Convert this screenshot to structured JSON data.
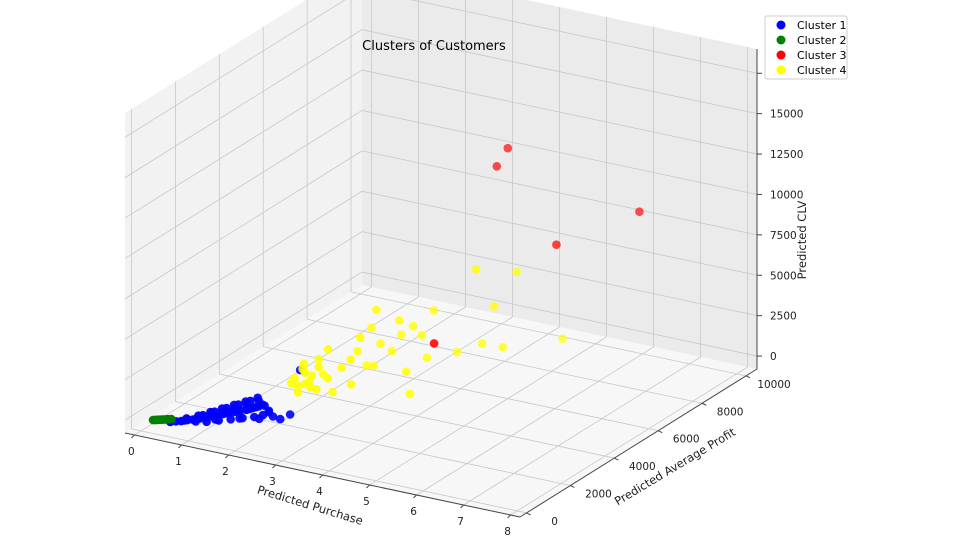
{
  "chart_data": {
    "type": "scatter",
    "projection": "3d",
    "title": "Clusters of Customers",
    "xlabel": "Predicted Purchase",
    "ylabel": "Predicted Average Profit",
    "zlabel": "Predicted CLV",
    "xlim": [
      -0.2,
      8.2
    ],
    "ylim": [
      -300,
      10500
    ],
    "zlim": [
      -800,
      19000
    ],
    "xticks": [
      "0",
      "1",
      "2",
      "3",
      "4",
      "5",
      "6",
      "7",
      "8"
    ],
    "yticks": [
      "0",
      "2000",
      "4000",
      "6000",
      "8000",
      "10000"
    ],
    "zticks": [
      "0",
      "2500",
      "5000",
      "7500",
      "10000",
      "12500",
      "15000",
      "17500"
    ],
    "grid": true,
    "legend_position": "top-right",
    "colors": {
      "pane_left": "#f2f2f2",
      "pane_back": "#ebebeb",
      "pane_floor": "#f7f7f7",
      "grid": "#c8c8c8"
    },
    "series": [
      {
        "name": "Cluster 1",
        "color": "#0000ff",
        "points": [
          [
            0.6,
            50,
            80
          ],
          [
            0.7,
            90,
            150
          ],
          [
            0.8,
            120,
            200
          ],
          [
            0.85,
            160,
            230
          ],
          [
            0.9,
            180,
            270
          ],
          [
            1.0,
            220,
            330
          ],
          [
            1.05,
            260,
            380
          ],
          [
            1.1,
            290,
            420
          ],
          [
            1.2,
            330,
            480
          ],
          [
            1.25,
            370,
            540
          ],
          [
            1.3,
            400,
            580
          ],
          [
            1.4,
            440,
            640
          ],
          [
            1.45,
            470,
            690
          ],
          [
            1.5,
            510,
            740
          ],
          [
            1.55,
            540,
            790
          ],
          [
            1.6,
            580,
            840
          ],
          [
            1.7,
            620,
            900
          ],
          [
            1.75,
            650,
            950
          ],
          [
            1.8,
            690,
            1000
          ],
          [
            1.9,
            730,
            1060
          ],
          [
            1.95,
            760,
            1110
          ],
          [
            2.0,
            800,
            1170
          ],
          [
            2.05,
            840,
            1220
          ],
          [
            2.1,
            870,
            1270
          ],
          [
            2.2,
            920,
            1340
          ],
          [
            0.9,
            150,
            400
          ],
          [
            1.1,
            260,
            600
          ],
          [
            1.3,
            380,
            850
          ],
          [
            1.5,
            480,
            1100
          ],
          [
            1.7,
            600,
            1350
          ],
          [
            1.9,
            700,
            1600
          ],
          [
            2.1,
            820,
            1850
          ],
          [
            1.2,
            420,
            150
          ],
          [
            1.4,
            540,
            250
          ],
          [
            1.6,
            660,
            350
          ],
          [
            1.8,
            770,
            450
          ],
          [
            2.0,
            880,
            550
          ],
          [
            2.15,
            950,
            700
          ],
          [
            2.25,
            1000,
            900
          ],
          [
            1.0,
            350,
            100
          ],
          [
            1.2,
            250,
            700
          ],
          [
            1.4,
            360,
            950
          ],
          [
            1.6,
            470,
            1200
          ],
          [
            1.8,
            580,
            1450
          ],
          [
            2.0,
            700,
            1700
          ],
          [
            2.2,
            820,
            1500
          ],
          [
            2.3,
            900,
            1100
          ],
          [
            2.4,
            1200,
            400
          ],
          [
            1.3,
            600,
            200
          ],
          [
            1.7,
            850,
            300
          ],
          [
            2.0,
            1100,
            250
          ],
          [
            2.2,
            1300,
            350
          ],
          [
            1.15,
            200,
            500
          ],
          [
            1.35,
            300,
            750
          ],
          [
            1.55,
            420,
            1000
          ],
          [
            1.75,
            520,
            1250
          ],
          [
            1.95,
            640,
            1500
          ],
          [
            2.15,
            760,
            1750
          ],
          [
            2.4,
            1650,
            300
          ],
          [
            2.5,
            1900,
            2900
          ]
        ]
      },
      {
        "name": "Cluster 2",
        "color": "#008000",
        "points": [
          [
            0.25,
            10,
            20
          ],
          [
            0.27,
            15,
            30
          ],
          [
            0.29,
            22,
            40
          ],
          [
            0.31,
            28,
            50
          ],
          [
            0.33,
            35,
            60
          ],
          [
            0.35,
            40,
            70
          ],
          [
            0.37,
            48,
            80
          ],
          [
            0.39,
            55,
            90
          ],
          [
            0.41,
            60,
            100
          ],
          [
            0.43,
            68,
            110
          ],
          [
            0.45,
            75,
            120
          ],
          [
            0.47,
            80,
            130
          ],
          [
            0.49,
            88,
            140
          ],
          [
            0.51,
            95,
            150
          ],
          [
            0.53,
            100,
            160
          ],
          [
            0.55,
            108,
            170
          ],
          [
            0.57,
            115,
            180
          ],
          [
            0.59,
            120,
            190
          ]
        ]
      },
      {
        "name": "Cluster 3",
        "color": "#ff0000",
        "points": [
          [
            5.0,
            5500,
            14000
          ],
          [
            5.0,
            6000,
            14700
          ],
          [
            6.5,
            5000,
            10500
          ],
          [
            7.8,
            6000,
            12500
          ],
          [
            5.3,
            2000,
            6200
          ]
        ]
      },
      {
        "name": "Cluster 4",
        "color": "#ffff00",
        "points": [
          [
            2.5,
            1800,
            1600
          ],
          [
            2.6,
            1900,
            2100
          ],
          [
            2.7,
            2000,
            2600
          ],
          [
            2.8,
            2100,
            3100
          ],
          [
            2.55,
            1900,
            3000
          ],
          [
            2.65,
            2000,
            2200
          ],
          [
            2.75,
            2100,
            1700
          ],
          [
            2.45,
            1750,
            2500
          ],
          [
            2.85,
            2200,
            2600
          ],
          [
            2.6,
            1850,
            3400
          ],
          [
            2.7,
            1950,
            1900
          ],
          [
            2.9,
            2300,
            2300
          ],
          [
            2.5,
            1800,
            2000
          ],
          [
            2.6,
            1900,
            2800
          ],
          [
            2.4,
            1700,
            2200
          ],
          [
            2.8,
            2100,
            3600
          ],
          [
            3.1,
            2500,
            2900
          ],
          [
            3.2,
            2700,
            3300
          ],
          [
            3.3,
            2800,
            3800
          ],
          [
            3.4,
            3000,
            2800
          ],
          [
            3.6,
            3200,
            4100
          ],
          [
            3.8,
            3300,
            3700
          ],
          [
            3.9,
            3500,
            4600
          ],
          [
            4.2,
            3800,
            4500
          ],
          [
            3.5,
            3000,
            5200
          ],
          [
            4.0,
            3200,
            5800
          ],
          [
            4.2,
            3400,
            5400
          ],
          [
            4.5,
            3700,
            6300
          ],
          [
            3.7,
            2800,
            6600
          ],
          [
            5.2,
            4400,
            4100
          ],
          [
            5.5,
            4700,
            3800
          ],
          [
            6.4,
            5500,
            4200
          ],
          [
            4.6,
            2400,
            2300
          ],
          [
            5.7,
            4900,
            8400
          ],
          [
            5.4,
            3700,
            9400
          ],
          [
            5.6,
            4100,
            6900
          ],
          [
            3.0,
            2300,
            1500
          ],
          [
            3.3,
            2500,
            2000
          ],
          [
            3.6,
            2900,
            3000
          ],
          [
            4.4,
            3600,
            3400
          ],
          [
            4.9,
            3900,
            3800
          ],
          [
            4.1,
            3300,
            2600
          ],
          [
            2.95,
            2200,
            4200
          ],
          [
            3.45,
            2600,
            4900
          ]
        ]
      }
    ]
  }
}
